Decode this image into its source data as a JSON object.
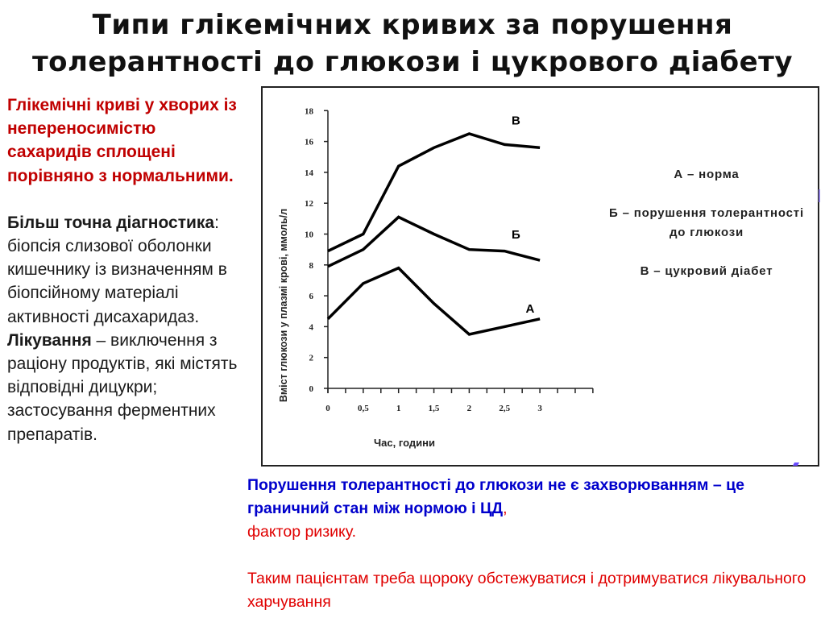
{
  "title": {
    "line1": "Типи глікемічних кривих за порушення",
    "line2": "толерантності до глюкози і цукрового діабету"
  },
  "left_column": {
    "intro": "Глікемічні криві у хворих із непереносимістю сахаридів сплощені порівняно з нормальними.",
    "diagnostics_label": "Більш точна діагностика",
    "diagnostics_text": ": біопсія слизової оболонки кишечнику із визначенням в біопсійному матеріалі активності дисахаридаз.",
    "treatment_label": "Лікування",
    "treatment_text": " – виключення з раціону продуктів, які містять відповідні дицукри; застосування ферментних препаратів."
  },
  "legend": {
    "a": "А – норма",
    "b": "Б – порушення толерантності до глюкози",
    "c": "В – цукровий діабет"
  },
  "bottom": {
    "blue_text": "Порушення толерантності до глюкози не є захворюванням – це граничний стан між нормою і ЦД",
    "red_comma": ",",
    "red_text_1": "фактор ризику.",
    "red_text_2": "Таким пацієнтам треба щороку обстежуватися і дотримуватися лікувального харчування"
  },
  "colors": {
    "title": "#111111",
    "intro_red": "#c00000",
    "blue": "#0000cc",
    "red": "#e00000",
    "line": "#000000"
  },
  "chart_data": {
    "type": "line",
    "title": "",
    "xlabel": "Час, години",
    "ylabel": "Вміст глюкози у плазмі крові, ммоль/л",
    "x": [
      0,
      0.5,
      1,
      1.5,
      2,
      2.5,
      3
    ],
    "x_tick_labels": [
      "0",
      "0,5",
      "1",
      "1,5",
      "2",
      "2,5",
      "3"
    ],
    "y_ticks": [
      0,
      2,
      4,
      6,
      8,
      10,
      12,
      14,
      16,
      18
    ],
    "ylim": [
      0,
      18
    ],
    "xlim": [
      0,
      3.75
    ],
    "grid": false,
    "legend_position": "right",
    "series": [
      {
        "name": "А",
        "label": "А – норма",
        "values": [
          4.5,
          6.8,
          7.8,
          5.5,
          3.5,
          4.0,
          4.5
        ]
      },
      {
        "name": "Б",
        "label": "Б – порушення толерантності до глюкози",
        "values": [
          7.9,
          9.0,
          11.1,
          10.0,
          9.0,
          8.9,
          8.3
        ]
      },
      {
        "name": "В",
        "label": "В – цукровий діабет",
        "values": [
          8.9,
          10.0,
          14.4,
          15.6,
          16.5,
          15.8,
          15.6
        ]
      }
    ],
    "annotations": [
      {
        "text": "В",
        "x": 2.6,
        "y": 17.1
      },
      {
        "text": "Б",
        "x": 2.6,
        "y": 9.7
      },
      {
        "text": "А",
        "x": 2.8,
        "y": 4.9
      }
    ]
  }
}
